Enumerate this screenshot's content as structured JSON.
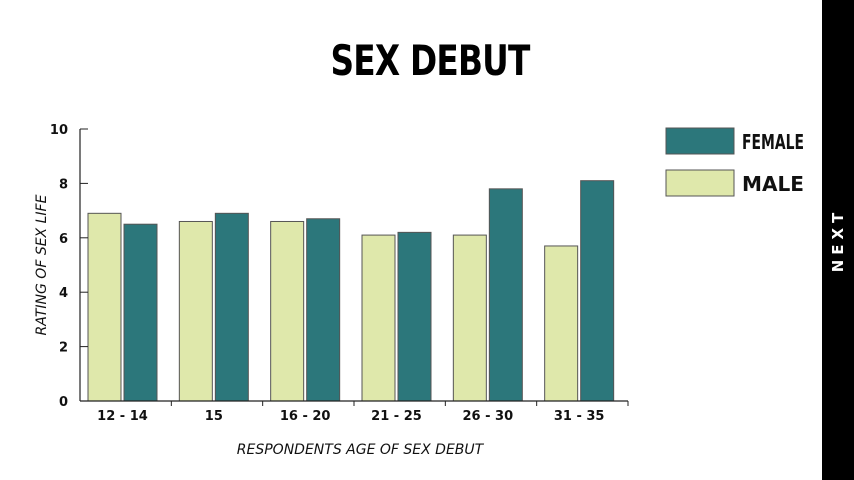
{
  "page": {
    "title": "SEX DEBUT",
    "next_label": "NEXT"
  },
  "colors": {
    "male": "#dfe8ab",
    "female": "#2c777b",
    "axis": "#222222",
    "bar_stroke": "#555555"
  },
  "chart_data": {
    "type": "bar",
    "title": "SEX DEBUT",
    "xlabel": "RESPONDENTS AGE OF SEX DEBUT",
    "ylabel": "RATING OF SEX LIFE",
    "ylim": [
      0,
      10
    ],
    "yticks": [
      "0",
      "2",
      "4",
      "6",
      "8",
      "10"
    ],
    "categories": [
      "12 - 14",
      "15",
      "16 - 20",
      "21 - 25",
      "26 - 30",
      "31 - 35"
    ],
    "series": [
      {
        "name": "MALE",
        "values": [
          6.9,
          6.6,
          6.6,
          6.1,
          6.1,
          5.7
        ]
      },
      {
        "name": "FEMALE",
        "values": [
          6.5,
          6.9,
          6.7,
          6.2,
          7.8,
          8.1
        ]
      }
    ],
    "legend": {
      "placement": "right",
      "order": [
        "FEMALE",
        "MALE"
      ]
    },
    "grid": false
  }
}
